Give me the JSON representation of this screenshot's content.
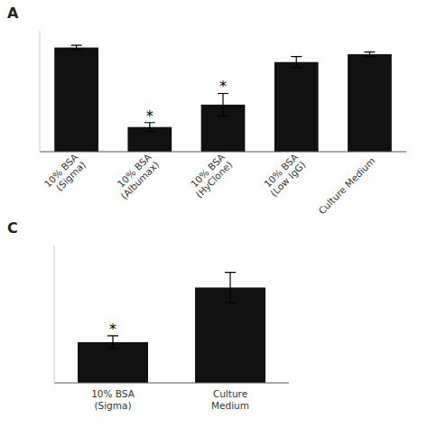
{
  "chart_data": [
    {
      "type": "bar",
      "title": "A",
      "categories": [
        "10% BSA\n(Sigma)",
        "10% BSA\n(Albumax)",
        "10% BSA\n(HyClone)",
        "10% BSA\n(Low IgG)",
        "Culture Medium"
      ],
      "values": [
        0.93,
        0.22,
        0.42,
        0.8,
        0.87
      ],
      "errors": [
        0.02,
        0.04,
        0.1,
        0.05,
        0.02
      ],
      "annotations": [
        {
          "text": "*",
          "index": 1
        },
        {
          "text": "*",
          "index": 2
        }
      ],
      "color": "#111111",
      "ylim": [
        0,
        1.08
      ],
      "tick_labels": "x"
    },
    {
      "type": "bar",
      "title": "C",
      "categories": [
        "10% BSA\n(Sigma)",
        "Culture\nMedium"
      ],
      "values": [
        0.32,
        0.75
      ],
      "errors": [
        0.05,
        0.12
      ],
      "annotations": [
        {
          "text": "*",
          "index": 0
        }
      ],
      "color": "#111111",
      "ylim": [
        0,
        1.08
      ],
      "tick_labels": "x"
    }
  ]
}
